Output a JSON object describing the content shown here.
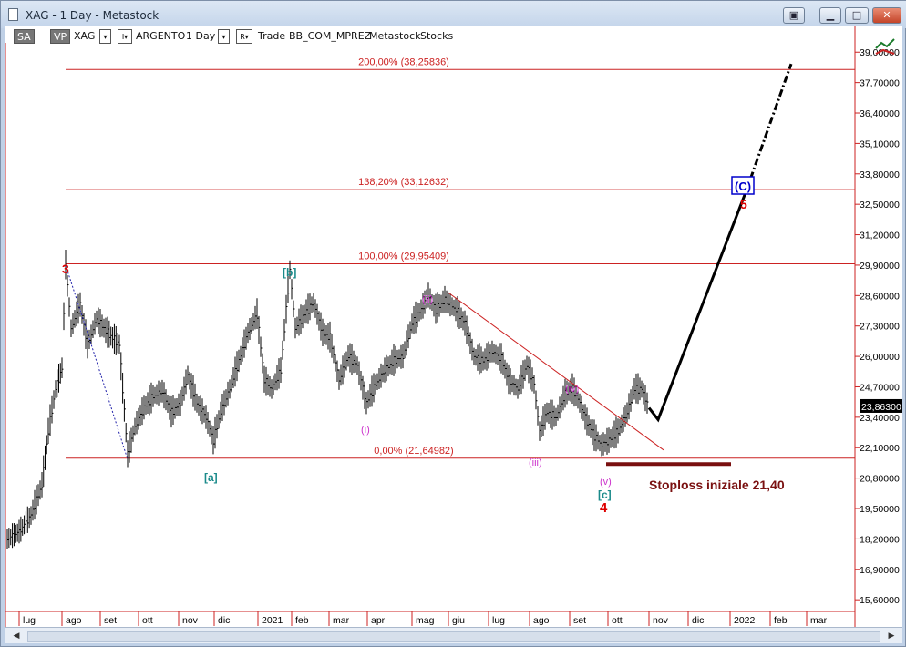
{
  "window": {
    "title": "XAG - 1 Day - Metastock",
    "controls": {
      "restore_alt": "▣",
      "minimize": "▁",
      "maximize": "□",
      "close": "✕"
    }
  },
  "toolbar": {
    "sa_label": "SA",
    "vp_label": "VP",
    "symbol": "XAG",
    "dropdown_arrow": "▾",
    "i_label": "I▾",
    "name": "ARGENTO",
    "period": "1 Day",
    "r_label": "R▾",
    "trade": "Trade",
    "template": "BB_COM_MPREZ",
    "source": "Metastock",
    "category": "Stocks"
  },
  "chart_data": {
    "type": "line",
    "series": [],
    "y_axis": {
      "ticks": [
        "39,00000",
        "37,70000",
        "36,40000",
        "35,10000",
        "33,80000",
        "32,50000",
        "31,20000",
        "29,90000",
        "28,60000",
        "27,30000",
        "26,00000",
        "24,70000",
        "23,40000",
        "22,10000",
        "20,80000",
        "19,50000",
        "18,20000",
        "16,90000",
        "15,60000"
      ],
      "range": [
        15.1,
        40.1
      ],
      "last_price": "23,86300"
    },
    "x_axis": {
      "ticks": [
        "lug",
        "ago",
        "set",
        "ott",
        "nov",
        "dic",
        "2021",
        "feb",
        "mar",
        "apr",
        "mag",
        "giu",
        "lug",
        "ago",
        "set",
        "ott",
        "nov",
        "dic",
        "2022",
        "feb",
        "mar"
      ]
    },
    "fib_levels": [
      {
        "label": "200,00% (38,25836)",
        "value": 38.25836
      },
      {
        "label": "138,20% (33,12632)",
        "value": 33.12632
      },
      {
        "label": "100,00% (29,95409)",
        "value": 29.95409
      },
      {
        "label": "0,00% (21,64982)",
        "value": 21.64982
      }
    ],
    "wave_labels": {
      "w3": "3",
      "b": "[b]",
      "a": "[a]",
      "ii": "(ii)",
      "i": "(i)",
      "iii": "(iii)",
      "iv": "(iv)",
      "v": "(v)",
      "c": "[c]",
      "w4": "4",
      "C": "(C)",
      "w5": "5"
    },
    "stoploss_label": "Stoploss iniziale 21,40",
    "stoploss_value": 21.4,
    "colors": {
      "fib": "#cc2222",
      "wave_red": "#dd0000",
      "wave_teal": "#1a8a8a",
      "wave_magenta": "#cc33cc",
      "wave_blue": "#0000cc",
      "stoploss": "#7a1010",
      "projection": "#000000",
      "price": "#000000"
    }
  }
}
